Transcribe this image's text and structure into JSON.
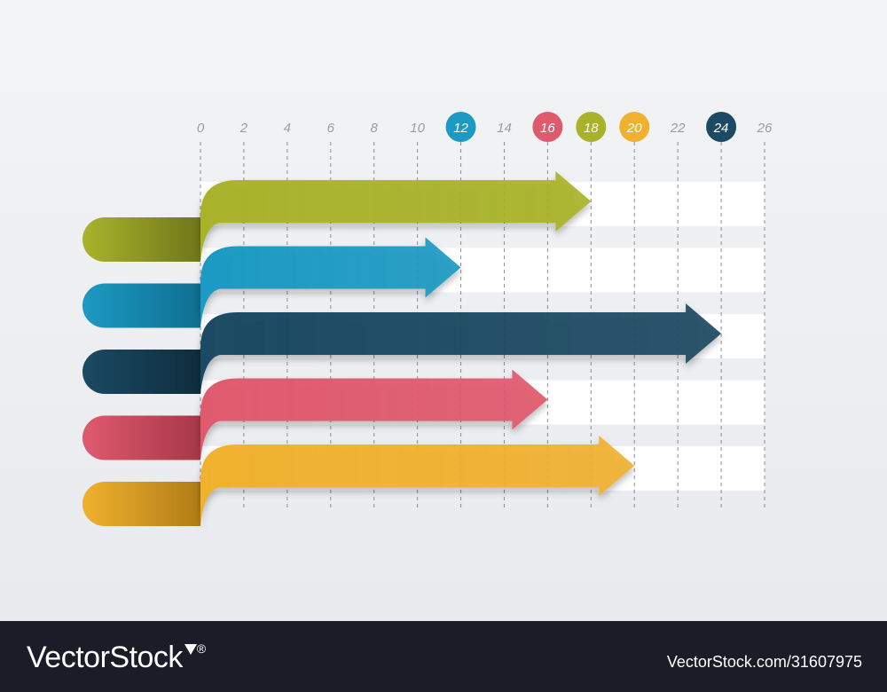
{
  "chart_data": {
    "type": "bar",
    "orientation": "horizontal",
    "x_ticks": [
      0,
      2,
      4,
      6,
      8,
      10,
      12,
      14,
      16,
      18,
      20,
      22,
      24,
      26
    ],
    "xlim": [
      0,
      26
    ],
    "grid": true,
    "series": [
      {
        "value": 18,
        "color": "#a9b32a",
        "dark": "#6f771a"
      },
      {
        "value": 12,
        "color": "#1c9ac3",
        "dark": "#0f6f90"
      },
      {
        "value": 24,
        "color": "#1b4a63",
        "dark": "#0e2d3d"
      },
      {
        "value": 16,
        "color": "#e05a6e",
        "dark": "#a63848"
      },
      {
        "value": 20,
        "color": "#f0b12f",
        "dark": "#b07c15"
      }
    ]
  },
  "footer": {
    "brand": "VectorStock",
    "registered": "®",
    "stock_id": "VectorStock.com/31607975"
  }
}
